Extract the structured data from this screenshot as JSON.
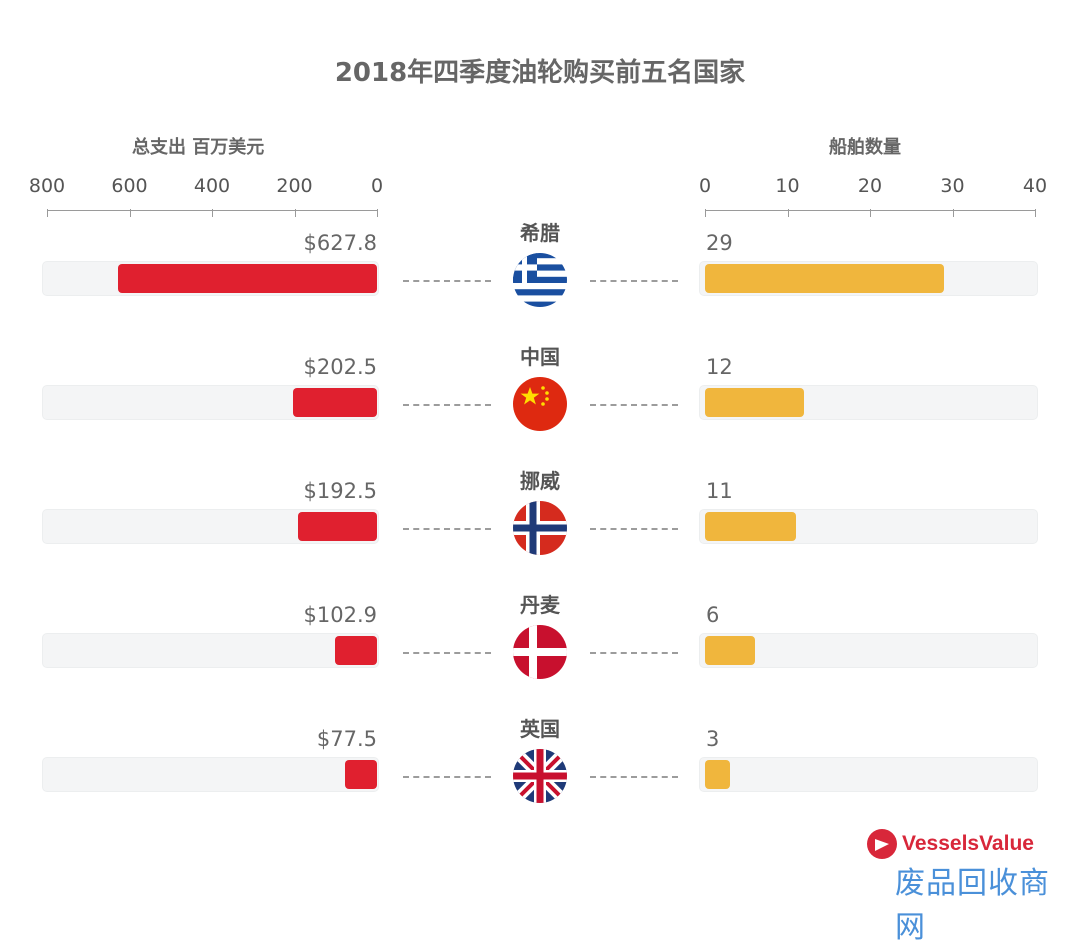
{
  "title": "2018年四季度油轮购买前五名国家",
  "chart_data": {
    "type": "bar",
    "title": "2018年四季度油轮购买前五名国家",
    "categories": [
      "希腊",
      "中国",
      "挪威",
      "丹麦",
      "英国"
    ],
    "left_axis": {
      "title": "总支出 百万美元",
      "ticks": [
        "800",
        "600",
        "400",
        "200",
        "0"
      ],
      "range": [
        0,
        800
      ],
      "direction": "reversed"
    },
    "right_axis": {
      "title": "船舶数量",
      "ticks": [
        "0",
        "10",
        "20",
        "30",
        "40"
      ],
      "range": [
        0,
        40
      ]
    },
    "series": [
      {
        "values": [
          627.8,
          202.5,
          192.5,
          102.9,
          77.5
        ],
        "labels": [
          "$627.8",
          "$202.5",
          "$192.5",
          "$102.9",
          "$77.5"
        ],
        "color": "#e0202f"
      },
      {
        "values": [
          29,
          12,
          11,
          6,
          3
        ],
        "labels": [
          "29",
          "12",
          "11",
          "6",
          "3"
        ],
        "color": "#f0b63d"
      }
    ]
  },
  "flags": [
    "greece-flag-icon",
    "china-flag-icon",
    "norway-flag-icon",
    "denmark-flag-icon",
    "uk-flag-icon"
  ],
  "logo": {
    "text": "VesselsValue",
    "color": "#d8273a"
  },
  "watermark": "废品回收商网"
}
